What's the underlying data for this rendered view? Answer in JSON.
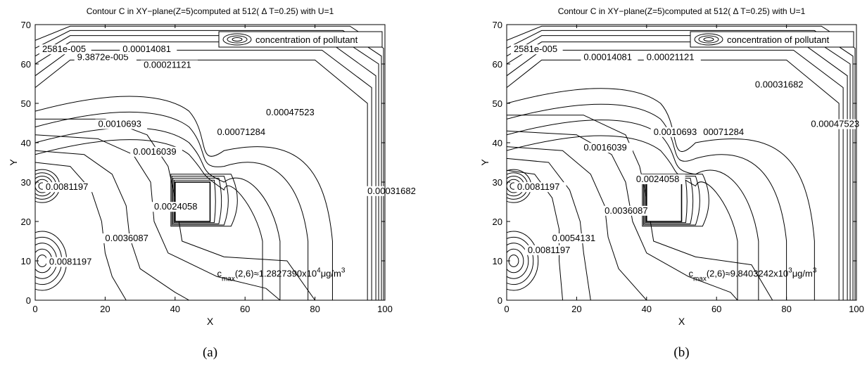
{
  "chart_data": [
    {
      "type": "contour",
      "title": "Contour C in XY−plane(Z=5)computed at 512( Δ T=0.25) with U=1",
      "xlabel": "X",
      "ylabel": "Y",
      "xlim": [
        0,
        100
      ],
      "ylim": [
        0,
        70
      ],
      "xticks": [
        "0",
        "20",
        "40",
        "60",
        "80",
        "100"
      ],
      "yticks": [
        "0",
        "10",
        "20",
        "30",
        "40",
        "50",
        "60",
        "70"
      ],
      "legend": {
        "label": "concentration of pollutant",
        "position": "top-right"
      },
      "obstacle": {
        "x": [
          40,
          50
        ],
        "y": [
          20,
          30
        ]
      },
      "contour_labels": [
        {
          "text": "2581e-005",
          "x": 2,
          "y": 63
        },
        {
          "text": "9.3872e-005",
          "x": 12,
          "y": 61
        },
        {
          "text": "0.00014081",
          "x": 25,
          "y": 63
        },
        {
          "text": "0.00021121",
          "x": 31,
          "y": 59
        },
        {
          "text": "0.00047523",
          "x": 66,
          "y": 47
        },
        {
          "text": "0.00071284",
          "x": 52,
          "y": 42
        },
        {
          "text": "0.0010693",
          "x": 18,
          "y": 44
        },
        {
          "text": "0.0016039",
          "x": 28,
          "y": 37
        },
        {
          "text": "0.00031682",
          "x": 95,
          "y": 27
        },
        {
          "text": "0.0081197",
          "x": 3,
          "y": 28
        },
        {
          "text": "0.0024058",
          "x": 34,
          "y": 23
        },
        {
          "text": "0.0036087",
          "x": 20,
          "y": 15
        },
        {
          "text": "0.0081197",
          "x": 4,
          "y": 9
        }
      ],
      "annotation": {
        "prefix": "c",
        "sub": "max",
        "body": "(2,6)≈1.2827390x10",
        "exp": "4",
        "unit": "μg/m",
        "unit_exp": "3"
      },
      "caption": "(a)"
    },
    {
      "type": "contour",
      "title": "Contour C in XY−plane(Z=5)computed at 512( Δ T=0.25) with U=1",
      "xlabel": "X",
      "ylabel": "Y",
      "xlim": [
        0,
        100
      ],
      "ylim": [
        0,
        70
      ],
      "xticks": [
        "0",
        "20",
        "40",
        "60",
        "80",
        "100"
      ],
      "yticks": [
        "0",
        "10",
        "20",
        "30",
        "40",
        "50",
        "60",
        "70"
      ],
      "legend": {
        "label": "concentration of pollutant",
        "position": "top-right"
      },
      "obstacle": {
        "x": [
          40,
          50
        ],
        "y": [
          20,
          30
        ]
      },
      "contour_labels": [
        {
          "text": "2581e-005",
          "x": 2,
          "y": 63
        },
        {
          "text": "0.00014081",
          "x": 22,
          "y": 61
        },
        {
          "text": "0.00021121",
          "x": 40,
          "y": 61
        },
        {
          "text": "0.00031682",
          "x": 71,
          "y": 54
        },
        {
          "text": "0.00047523",
          "x": 87,
          "y": 44
        },
        {
          "text": "0.00071284",
          "x": 54,
          "y": 42
        },
        {
          "text": "0.0010693",
          "x": 42,
          "y": 42
        },
        {
          "text": "0.0016039",
          "x": 22,
          "y": 38
        },
        {
          "text": "0.0024058",
          "x": 37,
          "y": 30
        },
        {
          "text": "0.0081197",
          "x": 3,
          "y": 28
        },
        {
          "text": "0.0036087",
          "x": 28,
          "y": 22
        },
        {
          "text": "0.0054131",
          "x": 13,
          "y": 15
        },
        {
          "text": "0.0081197",
          "x": 6,
          "y": 12
        }
      ],
      "annotation": {
        "prefix": "c",
        "sub": "max",
        "body": "(2,6)≈9.8403242x10",
        "exp": "3",
        "unit": "μg/m",
        "unit_exp": "3"
      },
      "caption": "(b)"
    }
  ]
}
